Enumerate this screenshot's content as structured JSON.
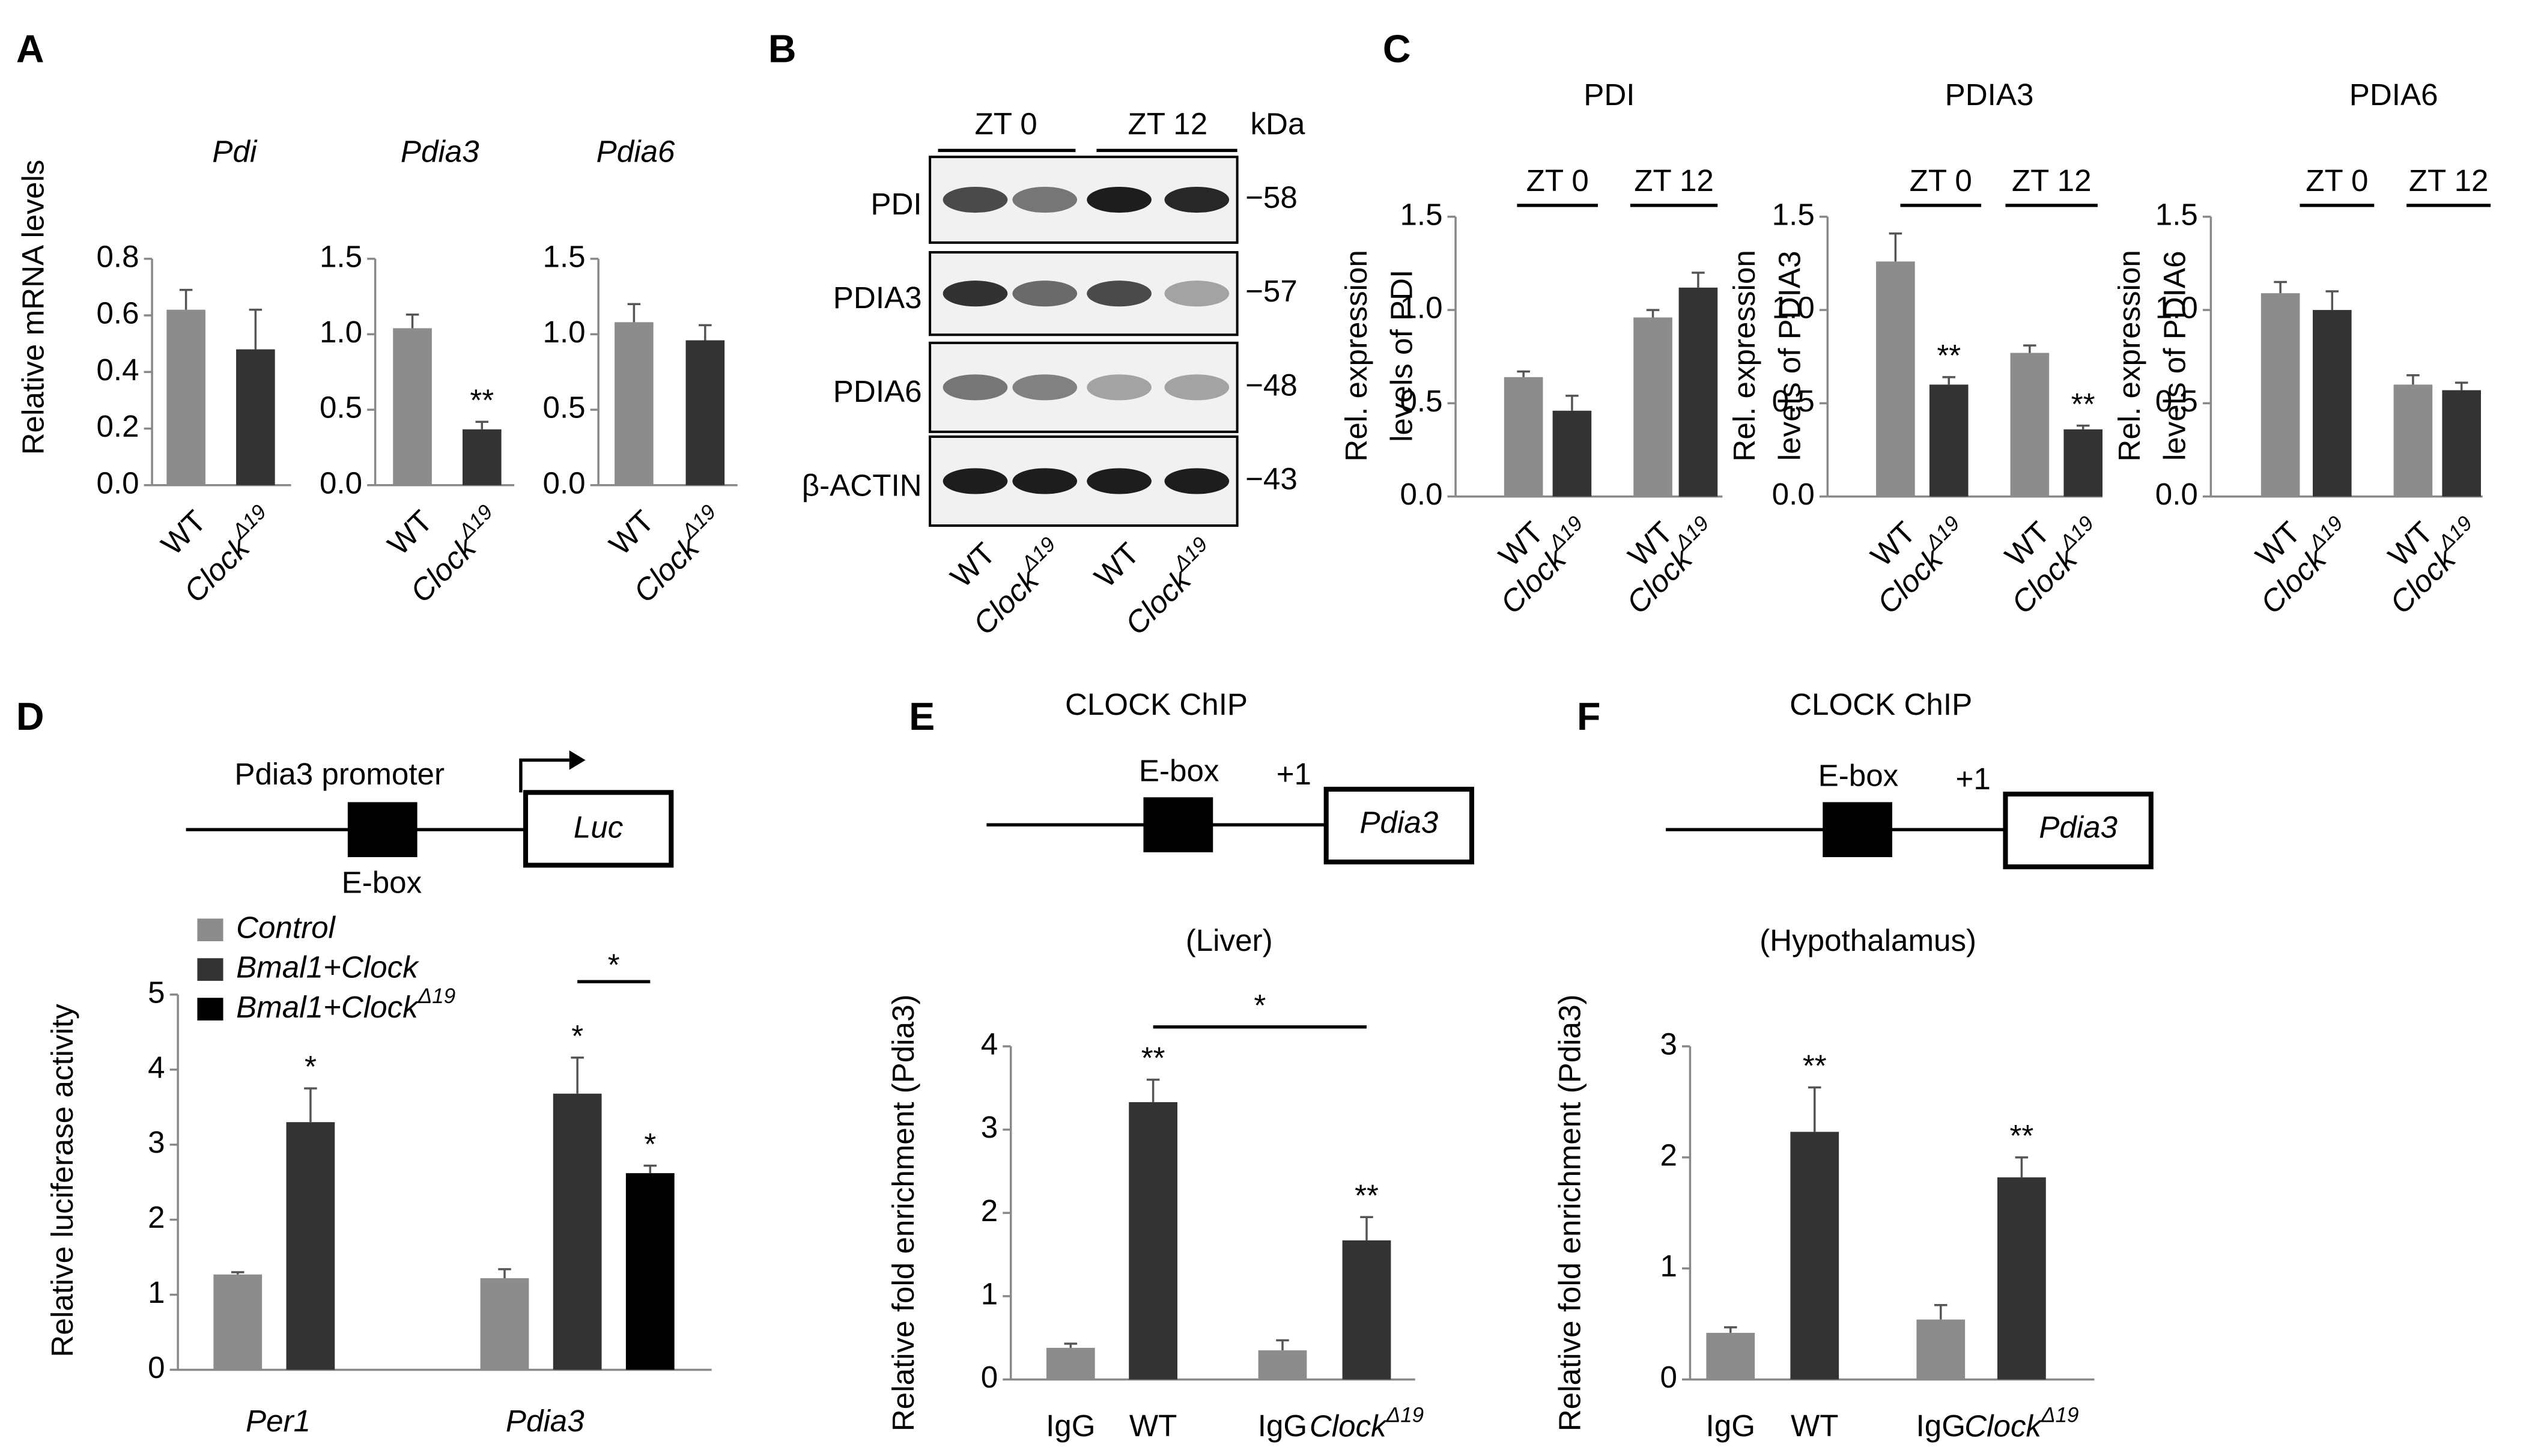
{
  "panel_labels": [
    "A",
    "B",
    "C",
    "D",
    "E",
    "F"
  ],
  "blot": {
    "groups": [
      "ZT 0",
      "ZT 12"
    ],
    "unit": "kDa",
    "rows": [
      {
        "label": "PDI",
        "kda": "−58"
      },
      {
        "label": "PDIA3",
        "kda": "−57"
      },
      {
        "label": "PDIA6",
        "kda": "−48"
      },
      {
        "label": "β-ACTIN",
        "kda": "−43"
      }
    ],
    "lanes": [
      "WT",
      "ClockΔ19",
      "WT",
      "ClockΔ19"
    ]
  },
  "chart_data": [
    {
      "type": "bar",
      "title": "Pdi",
      "ylabel": "Relative mRNA  levels",
      "categories": [
        "WT",
        "ClockΔ19"
      ],
      "values": [
        0.62,
        0.48
      ],
      "errors": [
        0.07,
        0.14
      ],
      "colors": [
        "#8c8c8c",
        "#333333"
      ],
      "ylim": [
        0,
        0.8
      ],
      "yticks": [
        {
          "value": 0,
          "label": "0.0"
        },
        0.2,
        0.4,
        0.6,
        0.8
      ]
    },
    {
      "type": "bar",
      "title": "Pdia3",
      "categories": [
        "WT",
        "ClockΔ19"
      ],
      "values": [
        1.04,
        0.37
      ],
      "errors": [
        0.09,
        0.05
      ],
      "value_annotations": [
        null,
        "**"
      ],
      "colors": [
        "#8c8c8c",
        "#333333"
      ],
      "ylim": [
        0,
        1.5
      ],
      "yticks": [
        {
          "value": 0,
          "label": "0.0"
        },
        0.5,
        {
          "value": 1,
          "label": "1.0"
        },
        1.5
      ]
    },
    {
      "type": "bar",
      "title": "Pdia6",
      "categories": [
        "WT",
        "ClockΔ19"
      ],
      "values": [
        1.08,
        0.96
      ],
      "errors": [
        0.12,
        0.1
      ],
      "colors": [
        "#8c8c8c",
        "#333333"
      ],
      "ylim": [
        0,
        1.5
      ],
      "yticks": [
        {
          "value": 0,
          "label": "0.0"
        },
        0.5,
        {
          "value": 1,
          "label": "1.0"
        },
        1.5
      ]
    },
    {
      "type": "bar",
      "title": "PDI",
      "ylabel": [
        "Rel. expression",
        "levels of PDI"
      ],
      "groups": [
        "ZT 0",
        "ZT 12"
      ],
      "categories": [
        "WT",
        "ClockΔ19",
        "WT",
        "ClockΔ19"
      ],
      "values": [
        0.64,
        0.46,
        0.96,
        1.12
      ],
      "errors": [
        0.03,
        0.08,
        0.04,
        0.08
      ],
      "colors": [
        "#8c8c8c",
        "#333333",
        "#8c8c8c",
        "#333333"
      ],
      "ylim": [
        0,
        1.5
      ],
      "yticks": [
        {
          "value": 0,
          "label": "0.0"
        },
        0.5,
        {
          "value": 1,
          "label": "1.0"
        },
        1.5
      ]
    },
    {
      "type": "bar",
      "title": "PDIA3",
      "ylabel": [
        "Rel. expression",
        "levels of PDIA3"
      ],
      "groups": [
        "ZT 0",
        "ZT 12"
      ],
      "categories": [
        "WT",
        "ClockΔ19",
        "WT",
        "ClockΔ19"
      ],
      "values": [
        1.26,
        0.6,
        0.77,
        0.36
      ],
      "errors": [
        0.15,
        0.04,
        0.04,
        0.02
      ],
      "value_annotations": [
        null,
        "**",
        null,
        "**"
      ],
      "colors": [
        "#8c8c8c",
        "#333333",
        "#8c8c8c",
        "#333333"
      ],
      "ylim": [
        0,
        1.5
      ],
      "yticks": [
        {
          "value": 0,
          "label": "0.0"
        },
        0.5,
        {
          "value": 1,
          "label": "1.0"
        },
        1.5
      ]
    },
    {
      "type": "bar",
      "title": "PDIA6",
      "ylabel": [
        "Rel. expression",
        "levels of PDIA6"
      ],
      "groups": [
        "ZT 0",
        "ZT 12"
      ],
      "categories": [
        "WT",
        "ClockΔ19",
        "WT",
        "ClockΔ19"
      ],
      "values": [
        1.09,
        1.0,
        0.6,
        0.57
      ],
      "errors": [
        0.06,
        0.1,
        0.05,
        0.04
      ],
      "colors": [
        "#8c8c8c",
        "#333333",
        "#8c8c8c",
        "#333333"
      ],
      "ylim": [
        0,
        1.5
      ],
      "yticks": [
        {
          "value": 0,
          "label": "0.0"
        },
        0.5,
        {
          "value": 1,
          "label": "1.0"
        },
        1.5
      ]
    },
    {
      "type": "grouped_bar",
      "diagram": {
        "promoter": "Pdia3 promoter",
        "box": "E-box",
        "gene": "Luc"
      },
      "ylabel": "Relative luciferase activity",
      "categories": [
        "Per1",
        "Pdia3"
      ],
      "series": [
        {
          "name": "Control",
          "color": "#8c8c8c",
          "values": [
            1.27,
            1.22
          ],
          "errors": [
            0.03,
            0.12
          ]
        },
        {
          "name": "Bmal1+Clock",
          "color": "#333333",
          "values": [
            3.3,
            3.68
          ],
          "errors": [
            0.45,
            0.48
          ],
          "annotations": [
            "*",
            "*"
          ]
        },
        {
          "name": "Bmal1+ClockΔ19",
          "color": "#000000",
          "values": [
            null,
            2.62
          ],
          "errors": [
            null,
            0.1
          ],
          "annotations": [
            null,
            "*"
          ]
        }
      ],
      "significance": "*",
      "ylim": [
        0,
        5
      ],
      "yticks": [
        0,
        1,
        2,
        3,
        4,
        5
      ]
    },
    {
      "type": "bar",
      "title": "CLOCK ChIP",
      "subtitle": "(Liver)",
      "diagram": {
        "box": "E-box",
        "start": "+1",
        "gene": "Pdia3"
      },
      "ylabel": "Relative fold enrichment (Pdia3)",
      "categories": [
        "IgG",
        "WT",
        "IgG",
        "ClockΔ19"
      ],
      "values": [
        0.38,
        3.33,
        0.35,
        1.67
      ],
      "errors": [
        0.05,
        0.27,
        0.12,
        0.28
      ],
      "value_annotations": [
        null,
        "**",
        null,
        "**"
      ],
      "significance": "*",
      "colors": [
        "#8c8c8c",
        "#333333",
        "#8c8c8c",
        "#333333"
      ],
      "ylim": [
        0,
        4
      ],
      "yticks": [
        0,
        1,
        2,
        3,
        4
      ]
    },
    {
      "type": "bar",
      "title": "CLOCK ChIP",
      "subtitle": "(Hypothalamus)",
      "diagram": {
        "box": "E-box",
        "start": "+1",
        "gene": "Pdia3"
      },
      "ylabel": "Relative fold enrichment (Pdia3)",
      "categories": [
        "IgG",
        "WT",
        "IgG",
        "ClockΔ19"
      ],
      "values": [
        0.42,
        2.23,
        0.54,
        1.82
      ],
      "errors": [
        0.05,
        0.4,
        0.13,
        0.18
      ],
      "value_annotations": [
        null,
        "**",
        null,
        "**"
      ],
      "colors": [
        "#8c8c8c",
        "#333333",
        "#8c8c8c",
        "#333333"
      ],
      "ylim": [
        0,
        3
      ],
      "yticks": [
        0,
        1,
        2,
        3
      ]
    }
  ]
}
